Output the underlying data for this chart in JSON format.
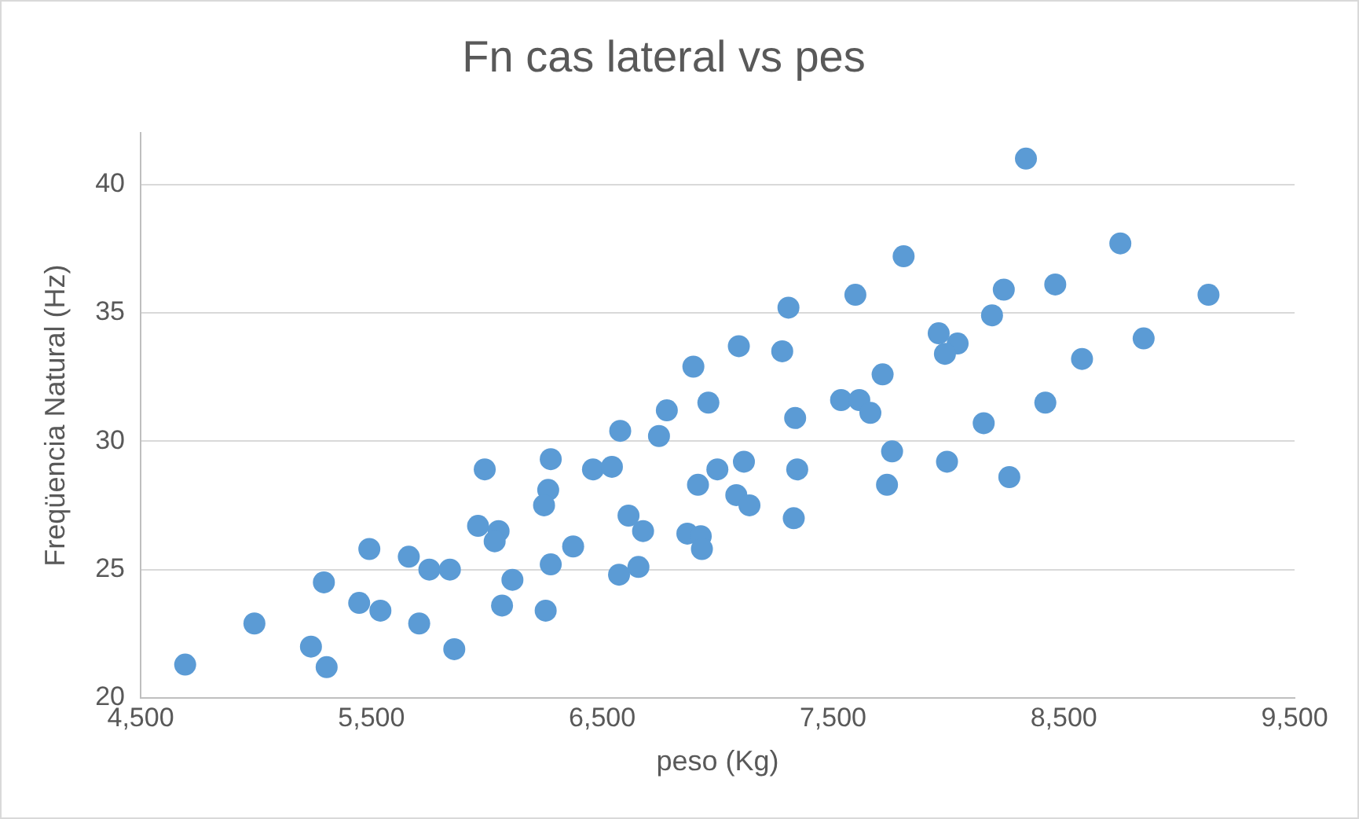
{
  "chart_data": {
    "type": "scatter",
    "title": "Fn cas lateral vs pes",
    "xlabel": "peso (Kg)",
    "ylabel": "Freqüencia Natural (Hz)",
    "xlim": [
      4500,
      9500
    ],
    "xticks": [
      {
        "value": 4500,
        "label": "4,500"
      },
      {
        "value": 5500,
        "label": "5,500"
      },
      {
        "value": 6500,
        "label": "6,500"
      },
      {
        "value": 7500,
        "label": "7,500"
      },
      {
        "value": 8500,
        "label": "8,500"
      },
      {
        "value": 9500,
        "label": "9,500"
      }
    ],
    "ylim": [
      20,
      42
    ],
    "yticks": [
      20,
      25,
      30,
      35,
      40
    ],
    "grid": "y",
    "legend": false,
    "marker": "circle",
    "series": [
      {
        "color": "#5b9bd5",
        "x": [
          4693,
          4993,
          5238,
          5306,
          5294,
          5447,
          5539,
          5491,
          5662,
          5707,
          5751,
          5840,
          5859,
          5991,
          5962,
          6051,
          6034,
          6111,
          6066,
          6255,
          6277,
          6277,
          6266,
          6248,
          6374,
          6460,
          6542,
          6578,
          6614,
          6677,
          6573,
          6657,
          6746,
          6780,
          6895,
          6960,
          6915,
          6999,
          6869,
          6927,
          6932,
          7092,
          7114,
          7081,
          7138,
          7307,
          7280,
          7336,
          7345,
          7330,
          7597,
          7806,
          7535,
          7614,
          7662,
          7715,
          7756,
          7734,
          8336,
          8240,
          8463,
          8745,
          9127,
          8189,
          7958,
          8040,
          7985,
          8846,
          8579,
          8420,
          8153,
          7994,
          8264
        ],
        "values": [
          21.3,
          22.9,
          22.0,
          21.2,
          24.5,
          23.7,
          23.4,
          25.8,
          25.5,
          22.9,
          25.0,
          25.0,
          21.9,
          28.9,
          26.7,
          26.5,
          26.1,
          24.6,
          23.6,
          23.4,
          25.2,
          29.3,
          28.1,
          27.5,
          25.9,
          28.9,
          29.0,
          30.4,
          27.1,
          26.5,
          24.8,
          25.1,
          30.2,
          31.2,
          32.9,
          31.5,
          28.3,
          28.9,
          26.4,
          26.3,
          25.8,
          33.7,
          29.2,
          27.9,
          27.5,
          35.2,
          33.5,
          30.9,
          28.9,
          27.0,
          35.7,
          37.2,
          31.6,
          31.6,
          31.1,
          32.6,
          29.6,
          28.3,
          41.0,
          35.9,
          36.1,
          37.7,
          35.7,
          34.9,
          34.2,
          33.8,
          33.4,
          34.0,
          33.2,
          31.5,
          30.7,
          29.2,
          28.6
        ]
      }
    ]
  }
}
